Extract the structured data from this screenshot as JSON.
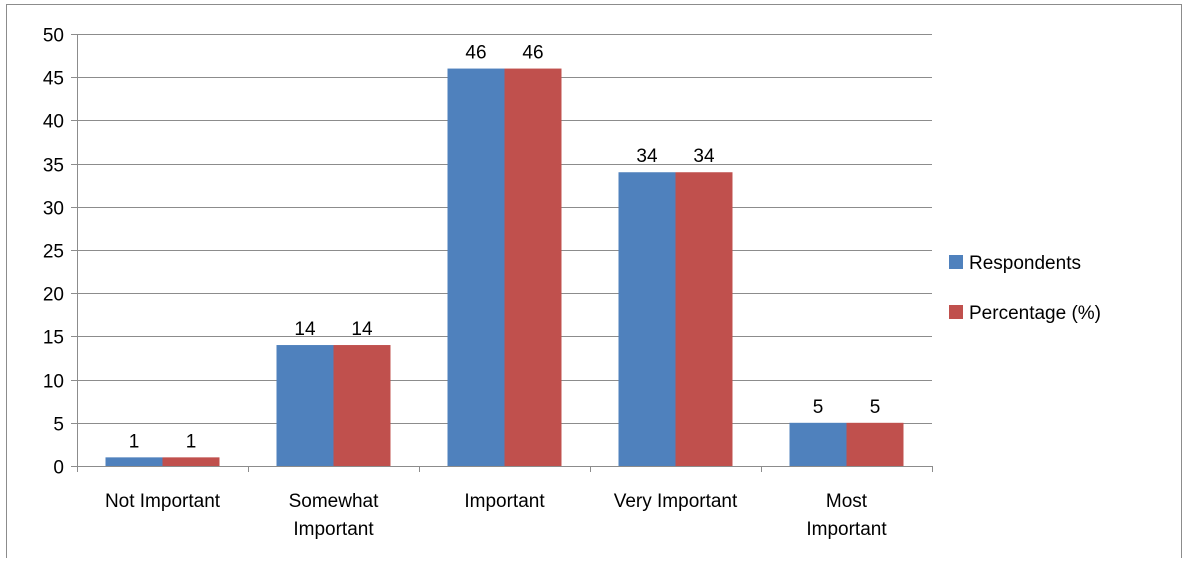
{
  "chart_data": {
    "type": "bar",
    "categories": [
      "Not Important",
      "Somewhat Important",
      "Important",
      "Very Important",
      "Most Important"
    ],
    "category_label_lines": [
      [
        "Not Important"
      ],
      [
        "Somewhat",
        "Important"
      ],
      [
        "Important"
      ],
      [
        "Very Important"
      ],
      [
        "Most",
        "Important"
      ]
    ],
    "series": [
      {
        "name": "Respondents",
        "values": [
          1,
          14,
          46,
          34,
          5
        ],
        "color": "#4f81bd"
      },
      {
        "name": "Percentage (%)",
        "values": [
          1,
          14,
          46,
          34,
          5
        ],
        "color": "#c0504d"
      }
    ],
    "ylim": [
      0,
      50
    ],
    "yticks": [
      0,
      5,
      10,
      15,
      20,
      25,
      30,
      35,
      40,
      45,
      50
    ],
    "grid": true,
    "gridline_color": "#8c8c8c",
    "data_labels": true,
    "legend_position": "right",
    "title": "",
    "xlabel": "",
    "ylabel": ""
  }
}
